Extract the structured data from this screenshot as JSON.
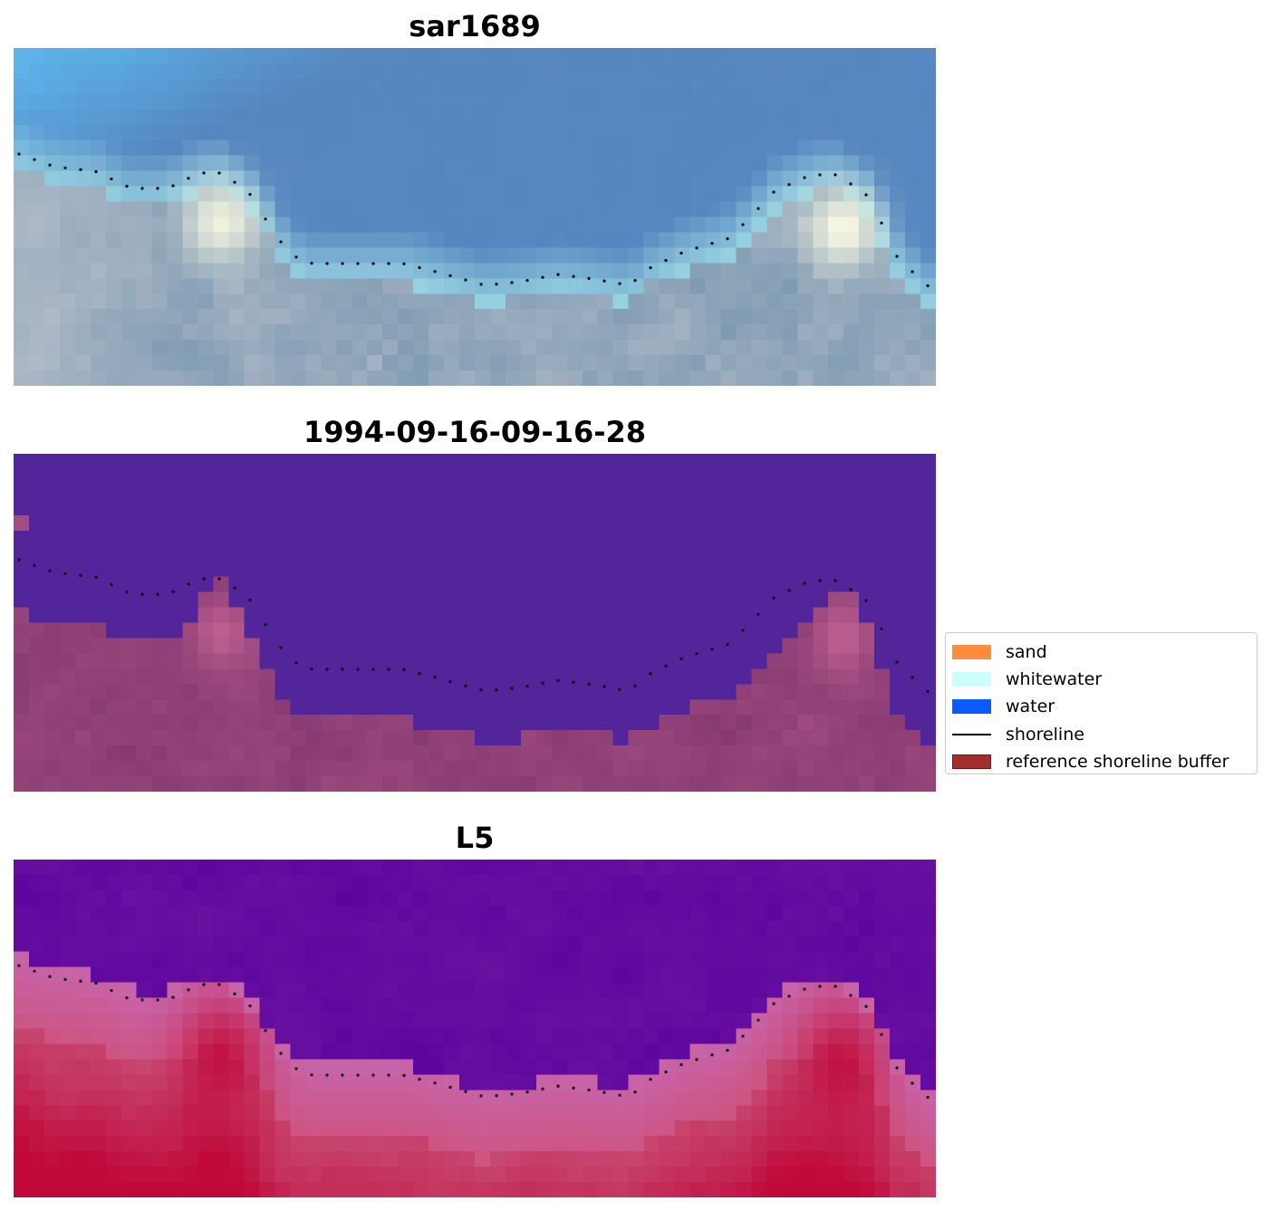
{
  "panels": [
    {
      "title": "sar1689",
      "style": "rgb"
    },
    {
      "title": "1994-09-16-09-16-28",
      "style": "classified"
    },
    {
      "title": "L5",
      "style": "index"
    }
  ],
  "legend": {
    "items": [
      {
        "label": "sand",
        "color": "#ff8c3a",
        "type": "patch"
      },
      {
        "label": "whitewater",
        "color": "#c9fffc",
        "type": "patch"
      },
      {
        "label": "water",
        "color": "#0a5cff",
        "type": "patch"
      },
      {
        "label": "shoreline",
        "color": "#000000",
        "type": "line"
      },
      {
        "label": "reference shoreline buffer",
        "color": "#a22f2d",
        "edge": "#7a1010",
        "type": "patch"
      }
    ]
  },
  "colors": {
    "water_class": "#53259a",
    "buffer_tint": "#a24d82",
    "index_low": "#5a049f",
    "index_high": "#c0093a",
    "shoreline_dots": "#000000"
  }
}
